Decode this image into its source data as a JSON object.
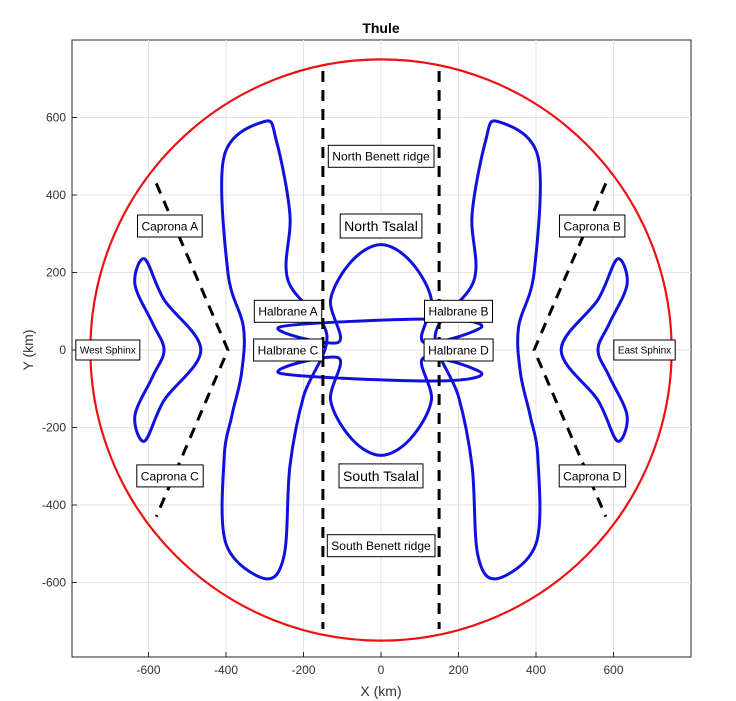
{
  "chart_data": {
    "type": "line",
    "title": "Thule",
    "xlabel": "X (km)",
    "ylabel": "Y (km)",
    "xlim": [
      -800,
      800
    ],
    "ylim": [
      -800,
      800
    ],
    "xticks": [
      -600,
      -400,
      -200,
      0,
      200,
      400,
      600
    ],
    "yticks": [
      -600,
      -400,
      -200,
      0,
      200,
      400,
      600
    ],
    "grid": true,
    "colors": {
      "boundary": "#ee1111",
      "contours": "#1111dd",
      "ridges": "#000000"
    },
    "boundary_circle": {
      "cx": 0,
      "cy": 0,
      "r": 750
    },
    "ridges": [
      {
        "points": [
          [
            -150,
            720
          ],
          [
            -150,
            -720
          ]
        ]
      },
      {
        "points": [
          [
            150,
            720
          ],
          [
            150,
            -720
          ]
        ]
      },
      {
        "points": [
          [
            -580,
            430
          ],
          [
            -395,
            0
          ],
          [
            -580,
            -430
          ]
        ]
      },
      {
        "points": [
          [
            580,
            430
          ],
          [
            395,
            0
          ],
          [
            580,
            -430
          ]
        ]
      }
    ],
    "contours": [
      {
        "points": [
          [
            -260,
            60
          ],
          [
            -110,
            20
          ],
          [
            -130,
            130
          ],
          [
            -75,
            230
          ],
          [
            0,
            272
          ],
          [
            75,
            230
          ],
          [
            130,
            130
          ],
          [
            110,
            20
          ],
          [
            260,
            60
          ],
          [
            135,
            80
          ]
        ]
      },
      {
        "points": [
          [
            -300,
            590
          ],
          [
            -270,
            540
          ],
          [
            -235,
            350
          ],
          [
            -240,
            180
          ],
          [
            -140,
            40
          ],
          [
            -200,
            -120
          ],
          [
            -235,
            -300
          ],
          [
            -250,
            -530
          ],
          [
            -300,
            -590
          ],
          [
            -400,
            -500
          ],
          [
            -405,
            -280
          ],
          [
            -385,
            -170
          ],
          [
            -360,
            -60
          ],
          [
            -355,
            60
          ],
          [
            -395,
            200
          ],
          [
            -405,
            500
          ]
        ]
      },
      {
        "points": [
          [
            -610,
            235
          ],
          [
            -560,
            130
          ],
          [
            -465,
            0
          ],
          [
            -560,
            -130
          ],
          [
            -610,
            -235
          ],
          [
            -635,
            -170
          ],
          [
            -590,
            -70
          ],
          [
            -560,
            0
          ],
          [
            -590,
            70
          ],
          [
            -635,
            170
          ]
        ]
      }
    ],
    "labels": [
      {
        "text": "North Benett ridge",
        "x": 0,
        "y": 500
      },
      {
        "text": "North Tsalal",
        "x": 0,
        "y": 320
      },
      {
        "text": "Caprona A",
        "x": -545,
        "y": 320
      },
      {
        "text": "Caprona B",
        "x": 545,
        "y": 320
      },
      {
        "text": "Halbrane A",
        "x": -240,
        "y": 100
      },
      {
        "text": "Halbrane B",
        "x": 200,
        "y": 100
      },
      {
        "text": "Halbrane C",
        "x": -240,
        "y": 0
      },
      {
        "text": "Halbrane D",
        "x": 200,
        "y": 0
      },
      {
        "text": "West Sphinx",
        "x": -705,
        "y": 0
      },
      {
        "text": "East Sphinx",
        "x": 680,
        "y": 0
      },
      {
        "text": "South Tsalal",
        "x": 0,
        "y": -325
      },
      {
        "text": "Caprona C",
        "x": -545,
        "y": -325
      },
      {
        "text": "Caprona D",
        "x": 545,
        "y": -325
      },
      {
        "text": "South Benett ridge",
        "x": 0,
        "y": -505
      }
    ]
  }
}
